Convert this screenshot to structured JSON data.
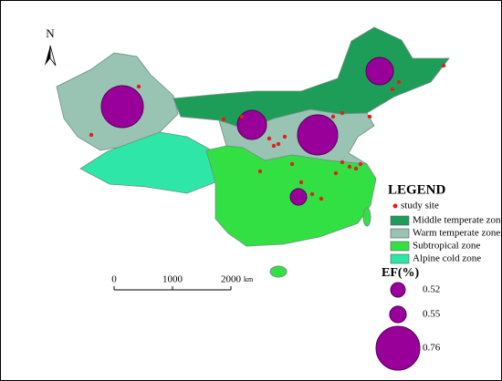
{
  "north": "N",
  "legend": {
    "title": "LEGEND",
    "site": "study site",
    "zones": [
      {
        "name": "Middle temperate zone",
        "color": "#1e9d58"
      },
      {
        "name": "Warm temperate zone",
        "color": "#99c4b3"
      },
      {
        "name": "Subtropical zone",
        "color": "#33e044"
      },
      {
        "name": "Alpine cold zone",
        "color": "#2ee6a8"
      }
    ],
    "ef_title": "EF(%)",
    "ef_sizes": [
      0.52,
      0.55,
      0.76
    ]
  },
  "scale": {
    "ticks": [
      0,
      1000,
      2000
    ],
    "unit": "km"
  }
}
